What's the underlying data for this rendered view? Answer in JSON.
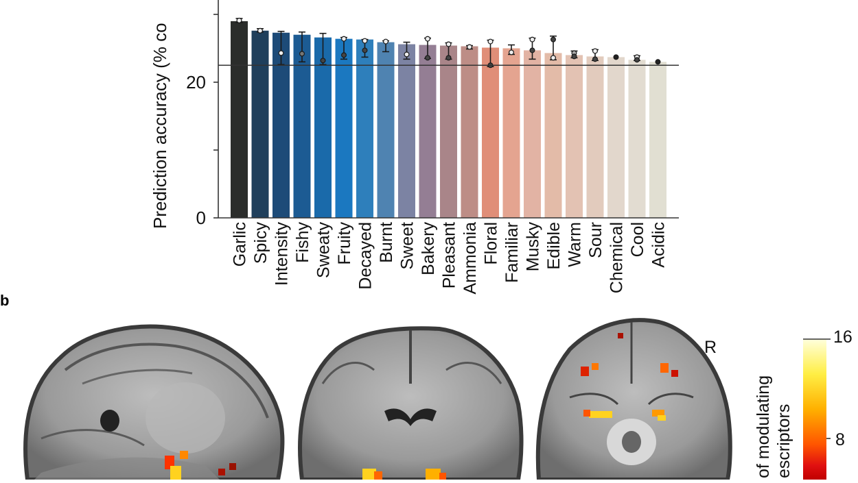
{
  "panel_b_label": "b",
  "chart_data": {
    "type": "bar",
    "ylabel": "Prediction accuracy (% co",
    "yticks": [
      0,
      20
    ],
    "ylim_visible": [
      0,
      27.2
    ],
    "chance_level": 22.5,
    "categories": [
      "Garlic",
      "Spicy",
      "Intensity",
      "Fishy",
      "Sweaty",
      "Fruity",
      "Decayed",
      "Burnt",
      "Sweet",
      "Bakery",
      "Pleasant",
      "Ammonia",
      "Floral",
      "Familiar",
      "Musky",
      "Edible",
      "Warm",
      "Sour",
      "Chemical",
      "Cool",
      "Acidic"
    ],
    "values": [
      29.0,
      27.6,
      27.3,
      27.0,
      26.6,
      26.4,
      26.3,
      25.9,
      25.6,
      25.5,
      25.4,
      25.3,
      25.1,
      25.0,
      24.7,
      24.3,
      24.0,
      23.8,
      23.7,
      23.3,
      23.0
    ],
    "bar_colors": [
      "#2b2d2b",
      "#1f3f5b",
      "#1d4b78",
      "#1c5b93",
      "#1a6aaa",
      "#1b78c0",
      "#2e7fbb",
      "#4f83b1",
      "#7c83a3",
      "#947e94",
      "#a98589",
      "#bd8d86",
      "#e08e78",
      "#e4a490",
      "#e2b3a4",
      "#e3bba8",
      "#e3c2b3",
      "#e2cbbd",
      "#e2d7cc",
      "#e2dcd1",
      "#e1dfd2"
    ],
    "error_bars": [
      {
        "lo": 28.8,
        "hi": 29.4,
        "points": [
          {
            "v": 29.1,
            "fill": "#eeeeee"
          }
        ]
      },
      {
        "lo": 27.4,
        "hi": 27.9,
        "points": [
          {
            "v": 27.6,
            "fill": "#eeeeee"
          }
        ]
      },
      {
        "lo": 22.6,
        "hi": 27.5,
        "points": [
          {
            "v": 24.3,
            "fill": "#eeeeee"
          }
        ]
      },
      {
        "lo": 23.0,
        "hi": 27.4,
        "points": [
          {
            "v": 24.2,
            "fill": "#777777"
          }
        ]
      },
      {
        "lo": 22.6,
        "hi": 27.2,
        "points": [
          {
            "v": 23.2,
            "fill": "#444444"
          }
        ]
      },
      {
        "lo": 23.4,
        "hi": 26.6,
        "points": [
          {
            "v": 26.4,
            "fill": "#eeeeee"
          },
          {
            "v": 24.0,
            "fill": "#444444"
          }
        ]
      },
      {
        "lo": 23.7,
        "hi": 26.3,
        "points": [
          {
            "v": 24.7,
            "fill": "#444444"
          },
          {
            "v": 26.1,
            "fill": "#eeeeee"
          }
        ]
      },
      {
        "lo": 24.5,
        "hi": 26.1,
        "points": [
          {
            "v": 26.0,
            "fill": "#eeeeee"
          }
        ]
      },
      {
        "lo": 23.4,
        "hi": 25.9,
        "points": [
          {
            "v": 24.1,
            "fill": "#eeeeee"
          }
        ]
      },
      {
        "lo": 23.5,
        "hi": 26.5,
        "points": [
          {
            "v": 26.4,
            "fill": "#eeeeee"
          },
          {
            "v": 23.6,
            "fill": "#444444"
          }
        ]
      },
      {
        "lo": 23.4,
        "hi": 25.8,
        "points": [
          {
            "v": 25.6,
            "fill": "#eeeeee"
          },
          {
            "v": 23.6,
            "fill": "#444444"
          }
        ]
      },
      {
        "lo": 24.9,
        "hi": 25.4,
        "points": [
          {
            "v": 25.2,
            "fill": "#eeeeee"
          }
        ]
      },
      {
        "lo": 22.3,
        "hi": 26.2,
        "points": [
          {
            "v": 26.0,
            "fill": "#eeeeee"
          },
          {
            "v": 22.5,
            "fill": "#444444"
          }
        ]
      },
      {
        "lo": 24.1,
        "hi": 25.5,
        "points": [
          {
            "v": 24.4,
            "fill": "#eeeeee"
          }
        ]
      },
      {
        "lo": 23.4,
        "hi": 26.5,
        "points": [
          {
            "v": 26.3,
            "fill": "#eeeeee"
          },
          {
            "v": 24.7,
            "fill": "#444444"
          }
        ]
      },
      {
        "lo": 23.3,
        "hi": 26.8,
        "points": [
          {
            "v": 26.3,
            "fill": "#444444"
          },
          {
            "v": 23.6,
            "fill": "#eeeeee"
          }
        ]
      },
      {
        "lo": 23.6,
        "hi": 24.6,
        "points": [
          {
            "v": 24.3,
            "fill": "#aaaaaa"
          },
          {
            "v": 23.8,
            "fill": "#444444"
          }
        ]
      },
      {
        "lo": 23.2,
        "hi": 24.8,
        "points": [
          {
            "v": 24.6,
            "fill": "#eeeeee"
          },
          {
            "v": 23.4,
            "fill": "#444444"
          }
        ]
      },
      {
        "lo": 23.7,
        "hi": 23.7,
        "points": [
          {
            "v": 23.7,
            "fill": "#222222"
          }
        ]
      },
      {
        "lo": 23.2,
        "hi": 23.9,
        "points": [
          {
            "v": 23.7,
            "fill": "#eeeeee"
          },
          {
            "v": 23.3,
            "fill": "#444444"
          }
        ]
      },
      {
        "lo": 23.0,
        "hi": 23.0,
        "points": [
          {
            "v": 23.0,
            "fill": "#222222"
          }
        ]
      }
    ]
  },
  "brain_panel": {
    "views": [
      "sagittal-slice",
      "coronal-slice",
      "axial-slice"
    ],
    "orientation_label": "R",
    "colorbar": {
      "max_label": "16",
      "mid_label": "8",
      "title_line1": "of modulating",
      "title_line2": "escriptors",
      "colors": [
        "#ffffdc",
        "#ffee44",
        "#ffb000",
        "#ff5500",
        "#e01010",
        "#c00000"
      ]
    }
  }
}
